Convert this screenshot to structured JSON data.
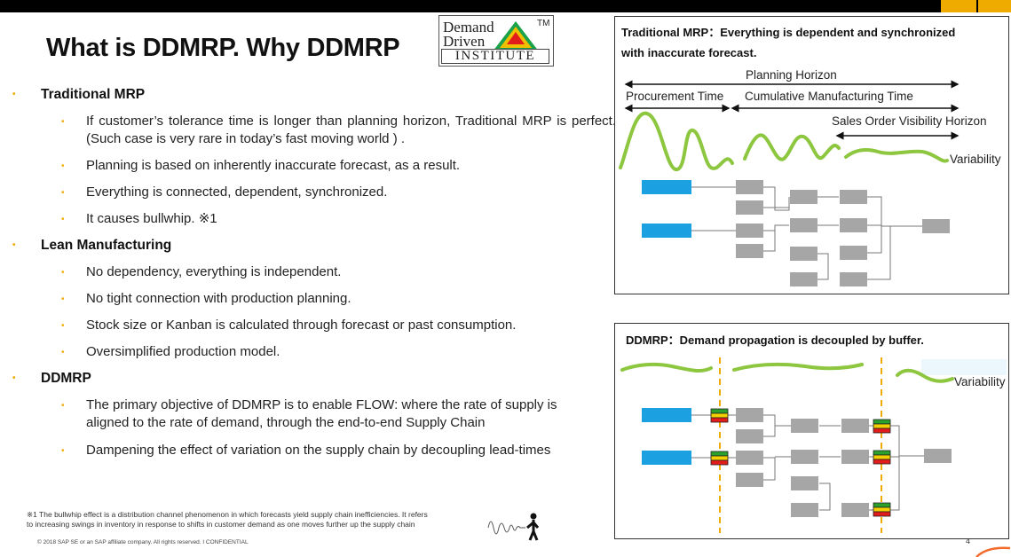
{
  "slide": {
    "title": "What is DDMRP. Why DDMRP",
    "page_number": "4",
    "copyright": "© 2018 SAP SE or an SAP affiliate company. All rights reserved.  ǀ  CONFIDENTIAL",
    "footnote_line1": "※1 The bullwhip effect is a distribution channel phenomenon in which forecasts yield supply chain inefficiencies. It refers",
    "footnote_line2": "to increasing swings in inventory in response to shifts in customer demand as one moves further up the supply chain"
  },
  "logo": {
    "line1": "Demand",
    "line2": "Driven",
    "line3": "INSTITUTE",
    "tm": "TM",
    "colors": [
      "#e21b1b",
      "#f0c000",
      "#1aa34a"
    ]
  },
  "colors": {
    "accent": "#f0ab00",
    "wave": "#8dc63f",
    "source_box": "#1ba1e2",
    "node_box": "#a6a6a6",
    "buffer_line": "#f0ab00"
  },
  "sections": [
    {
      "heading": "Traditional MRP",
      "items": [
        "If customer’s tolerance time is longer than planning horizon, Traditional MRP is perfect.(Such case is very rare in today’s fast moving world ) .",
        "Planning is based on inherently inaccurate forecast, as a result.",
        "Everything is connected, dependent, synchronized.",
        "It causes bullwhip.  ※1"
      ]
    },
    {
      "heading": "Lean Manufacturing",
      "items": [
        "No dependency, everything is independent.",
        "No tight connection with production planning.",
        "Stock size or Kanban is calculated through forecast or past consumption.",
        "Oversimplified production model."
      ]
    },
    {
      "heading": "DDMRP",
      "items": [
        "The primary objective of DDMRP is to enable FLOW:  where the rate of supply is aligned to the rate of demand,  through the end-to-end Supply Chain",
        "Dampening the effect of variation on the supply chain by decoupling lead-times"
      ]
    }
  ],
  "panel_top": {
    "title_line1": "Traditional MRP：Everything is dependent and synchronized",
    "title_line2": "with inaccurate forecast.",
    "planning_horizon": "Planning Horizon",
    "procurement_time": "Procurement Time",
    "cumulative_time": "Cumulative Manufacturing Time",
    "sales_visibility": "Sales Order Visibility Horizon",
    "variability": "Variability"
  },
  "panel_bottom": {
    "title": "DDMRP：Demand propagation is decoupled by buffer.",
    "variability": "Variability"
  }
}
